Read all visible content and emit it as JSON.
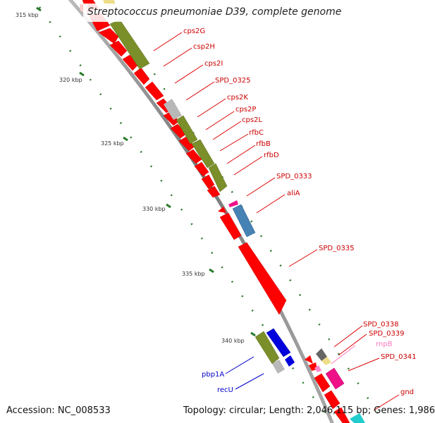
{
  "title": "Streptococcus pneumoniae D39, complete genome",
  "accession": "Accession: NC_008533",
  "summary": "Topology: circular; Length: 2,046,115 bp; Genes: 1,986",
  "colors": {
    "backbone": "#888888",
    "tick": "#2a7a2a",
    "cds": "#ff0000",
    "olive": "#7a8f2a",
    "blue": "#0000dd",
    "steel": "#4682b4",
    "gray": "#b8b8b8",
    "magenta": "#ee1188",
    "pink": "#ff88cc",
    "cyan": "#22cccc",
    "yellow": "#eedd88",
    "dark": "#666666"
  },
  "scale": {
    "labels": [
      "315 kbp",
      "320 kbp",
      "325 kbp",
      "330 kbp",
      "335 kbp",
      "340 kbp"
    ]
  },
  "labels": [
    {
      "text": "cps2G",
      "color": "#cc0000"
    },
    {
      "text": "csp2H",
      "color": "#cc0000"
    },
    {
      "text": "cps2I",
      "color": "#cc0000"
    },
    {
      "text": "SPD_0325",
      "color": "#cc0000"
    },
    {
      "text": "cps2K",
      "color": "#cc0000"
    },
    {
      "text": "cps2P",
      "color": "#cc0000"
    },
    {
      "text": "cps2L",
      "color": "#cc0000"
    },
    {
      "text": "rfbC",
      "color": "#cc0000"
    },
    {
      "text": "rfbB",
      "color": "#cc0000"
    },
    {
      "text": "rfbD",
      "color": "#cc0000"
    },
    {
      "text": "SPD_0333",
      "color": "#cc0000"
    },
    {
      "text": "aliA",
      "color": "#cc0000"
    },
    {
      "text": "SPD_0335",
      "color": "#cc0000"
    },
    {
      "text": "SPD_0338",
      "color": "#cc0000"
    },
    {
      "text": "SPD_0339",
      "color": "#cc0000"
    },
    {
      "text": "rnpB",
      "color": "#ff77bb"
    },
    {
      "text": "SPD_0341",
      "color": "#cc0000"
    },
    {
      "text": "gnd",
      "color": "#cc0000"
    },
    {
      "text": "pbp1A",
      "color": "#0000cc"
    },
    {
      "text": "recU",
      "color": "#0000cc"
    }
  ]
}
